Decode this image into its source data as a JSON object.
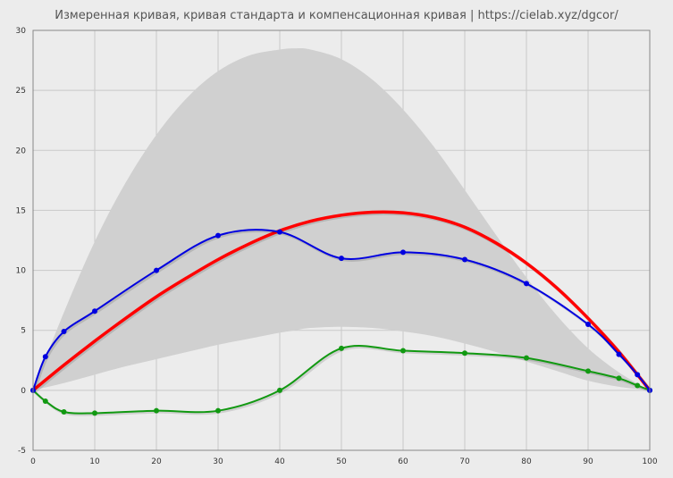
{
  "chart_data": {
    "type": "line",
    "title": "Измеренная кривая, кривая стандарта и компенсационная кривая | https://cielab.xyz/dgcor/",
    "xlim": [
      0,
      100
    ],
    "ylim": [
      -5,
      30
    ],
    "x_ticks": [
      "0",
      "10",
      "20",
      "30",
      "40",
      "50",
      "60",
      "70",
      "80",
      "90",
      "100"
    ],
    "y_ticks": [
      "-5",
      "0",
      "5",
      "10",
      "15",
      "20",
      "25",
      "30"
    ],
    "grid": true,
    "colors": {
      "background": "#ececec",
      "grid": "#c9c9c9",
      "band": "#d0d0d0",
      "measured": "#0000e0",
      "standard": "#ff0000",
      "compensation": "#119911"
    },
    "band": {
      "x": [
        0,
        5,
        10,
        15,
        20,
        25,
        30,
        35,
        40,
        42.5,
        45,
        50,
        55,
        60,
        65,
        70,
        75,
        80,
        85,
        90,
        95,
        100
      ],
      "upper": [
        0,
        6.5,
        12.4,
        17.3,
        21.3,
        24.4,
        26.6,
        27.9,
        28.4,
        28.5,
        28.4,
        27.6,
        25.9,
        23.4,
        20.3,
        16.7,
        13.0,
        9.4,
        6.2,
        3.5,
        1.5,
        0
      ],
      "lower": [
        0,
        0.6,
        1.3,
        2.0,
        2.6,
        3.2,
        3.8,
        4.3,
        4.8,
        5.0,
        5.2,
        5.3,
        5.2,
        4.9,
        4.5,
        3.9,
        3.2,
        2.4,
        1.6,
        0.8,
        0.3,
        0
      ]
    },
    "series": [
      {
        "key": "measured",
        "x": [
          0,
          2,
          5,
          10,
          20,
          30,
          40,
          50,
          60,
          70,
          80,
          90,
          95,
          98,
          100
        ],
        "y": [
          0,
          2.8,
          4.9,
          6.6,
          10.0,
          12.9,
          13.2,
          11.0,
          11.5,
          10.9,
          8.9,
          5.5,
          3.0,
          1.3,
          0
        ],
        "markers": true
      },
      {
        "key": "standard",
        "x": [
          0,
          5,
          10,
          15,
          20,
          25,
          30,
          35,
          40,
          45,
          50,
          55,
          60,
          65,
          70,
          75,
          80,
          85,
          90,
          95,
          100
        ],
        "y": [
          0,
          2.1,
          4.1,
          6.0,
          7.8,
          9.4,
          10.9,
          12.2,
          13.3,
          14.1,
          14.6,
          14.85,
          14.8,
          14.4,
          13.6,
          12.3,
          10.6,
          8.5,
          6.0,
          3.2,
          0
        ],
        "markers": false
      },
      {
        "key": "compensation",
        "x": [
          0,
          2,
          5,
          10,
          20,
          30,
          40,
          50,
          60,
          70,
          80,
          90,
          95,
          98,
          100
        ],
        "y": [
          0,
          -0.9,
          -1.8,
          -1.9,
          -1.7,
          -1.7,
          0.0,
          3.5,
          3.3,
          3.1,
          2.7,
          1.6,
          1.0,
          0.4,
          0
        ],
        "markers": true
      }
    ]
  }
}
